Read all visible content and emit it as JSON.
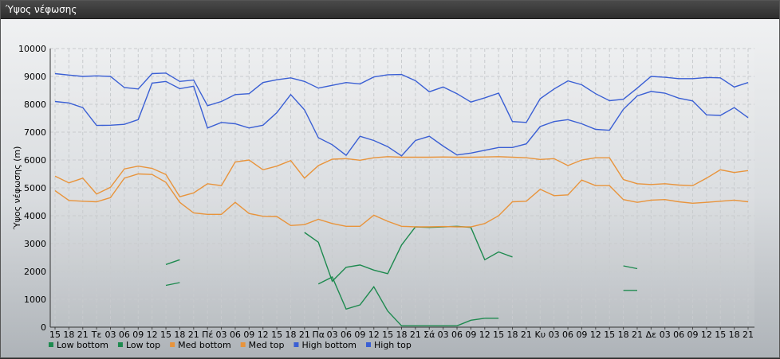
{
  "window": {
    "title": "Ύψος νέφωσης"
  },
  "chart_data": {
    "type": "line",
    "title": "",
    "ylabel": "Ύψος νέφωσης (m)",
    "xlabel": "",
    "ylim": [
      0,
      10000
    ],
    "yticks": [
      0,
      1000,
      2000,
      3000,
      4000,
      5000,
      6000,
      7000,
      8000,
      9000,
      10000
    ],
    "grid": true,
    "legend_position": "bottom-left",
    "x_tick_labels": [
      "15",
      "18",
      "21",
      "Τε",
      "03",
      "06",
      "09",
      "12",
      "15",
      "18",
      "21",
      "Πέ",
      "03",
      "06",
      "09",
      "12",
      "15",
      "18",
      "21",
      "Πα",
      "03",
      "06",
      "09",
      "12",
      "15",
      "18",
      "21",
      "Σά",
      "03",
      "06",
      "09",
      "12",
      "15",
      "18",
      "21",
      "Κυ",
      "03",
      "06",
      "09",
      "12",
      "15",
      "18",
      "21",
      "Δε",
      "03",
      "06",
      "09",
      "12",
      "15",
      "18",
      "21"
    ],
    "series": [
      {
        "name": "Low bottom",
        "color": "#1e8a4f",
        "values": [
          null,
          null,
          null,
          null,
          null,
          null,
          null,
          null,
          1500,
          1600,
          null,
          null,
          null,
          null,
          null,
          null,
          null,
          null,
          null,
          1550,
          1800,
          650,
          800,
          1450,
          580,
          50,
          50,
          50,
          50,
          50,
          250,
          320,
          320,
          null,
          null,
          null,
          null,
          null,
          null,
          null,
          null,
          1320,
          1320,
          null,
          null,
          null,
          null,
          null,
          null,
          null,
          null
        ]
      },
      {
        "name": "Low top",
        "color": "#1e8a4f",
        "values": [
          null,
          null,
          null,
          null,
          null,
          null,
          null,
          null,
          2250,
          2420,
          null,
          null,
          null,
          null,
          null,
          null,
          null,
          null,
          3400,
          3050,
          1650,
          2150,
          2230,
          2050,
          1920,
          2950,
          3600,
          3580,
          3600,
          3620,
          3580,
          2420,
          2700,
          2520,
          null,
          null,
          null,
          null,
          null,
          null,
          null,
          2200,
          2100,
          null,
          null,
          null,
          null,
          null,
          null,
          null,
          null
        ]
      },
      {
        "name": "Med bottom",
        "color": "#e8943c",
        "values": [
          4900,
          4550,
          4520,
          4500,
          4650,
          5350,
          5500,
          5480,
          5200,
          4480,
          4100,
          4050,
          4050,
          4480,
          4080,
          3980,
          3970,
          3650,
          3680,
          3870,
          3720,
          3620,
          3620,
          4020,
          3800,
          3620,
          3600,
          3600,
          3610,
          3600,
          3600,
          3720,
          4000,
          4500,
          4520,
          4950,
          4720,
          4750,
          5280,
          5080,
          5080,
          4580,
          4480,
          4560,
          4580,
          4500,
          4450,
          4480,
          4520,
          4560,
          4500
        ]
      },
      {
        "name": "Med top",
        "color": "#e8943c",
        "values": [
          5420,
          5180,
          5350,
          4780,
          5020,
          5680,
          5780,
          5700,
          5480,
          4680,
          4820,
          5150,
          5080,
          5930,
          6000,
          5650,
          5780,
          5980,
          5350,
          5800,
          6030,
          6050,
          5990,
          6080,
          6120,
          6100,
          6100,
          6100,
          6110,
          6100,
          6100,
          6110,
          6120,
          6100,
          6080,
          6020,
          6050,
          5800,
          6000,
          6080,
          6080,
          5300,
          5150,
          5120,
          5150,
          5100,
          5080,
          5350,
          5650,
          5550,
          5620
        ]
      },
      {
        "name": "High bottom",
        "color": "#3a5fd4",
        "values": [
          8100,
          8050,
          7880,
          7240,
          7250,
          7280,
          7450,
          8760,
          8820,
          8560,
          8650,
          7150,
          7350,
          7300,
          7150,
          7250,
          7700,
          8350,
          7800,
          6800,
          6550,
          6170,
          6850,
          6700,
          6480,
          6150,
          6700,
          6850,
          6500,
          6180,
          6250,
          6350,
          6450,
          6450,
          6580,
          7200,
          7380,
          7450,
          7300,
          7100,
          7070,
          7820,
          8300,
          8460,
          8400,
          8220,
          8120,
          7620,
          7600,
          7880,
          7520
        ]
      },
      {
        "name": "High top",
        "color": "#3a5fd4",
        "values": [
          9100,
          9050,
          9000,
          9020,
          9000,
          8600,
          8550,
          9100,
          9120,
          8820,
          8870,
          7950,
          8100,
          8350,
          8380,
          8780,
          8880,
          8950,
          8820,
          8580,
          8680,
          8780,
          8730,
          8980,
          9060,
          9070,
          8850,
          8450,
          8620,
          8380,
          8080,
          8230,
          8400,
          7380,
          7350,
          8200,
          8550,
          8840,
          8700,
          8380,
          8130,
          8180,
          8580,
          9000,
          8970,
          8920,
          8920,
          8960,
          8950,
          8620,
          8780
        ]
      }
    ]
  }
}
